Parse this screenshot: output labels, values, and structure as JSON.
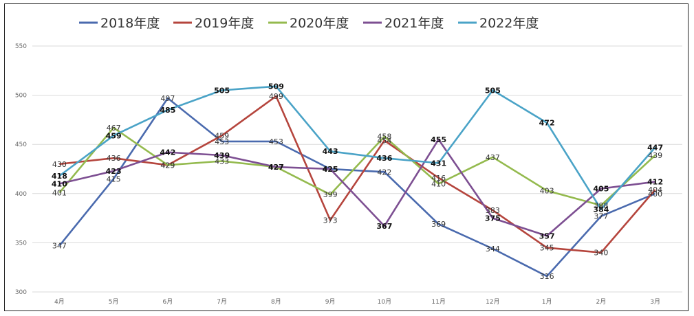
{
  "chart_data": {
    "type": "line",
    "categories": [
      "4月",
      "5月",
      "6月",
      "7月",
      "8月",
      "9月",
      "10月",
      "11月",
      "12月",
      "1月",
      "2月",
      "3月"
    ],
    "ylim": [
      300,
      550
    ],
    "yticks": [
      300,
      350,
      400,
      450,
      500,
      550
    ],
    "grid": true,
    "legend_position": "top",
    "series": [
      {
        "name": "2018年度",
        "color": "#4a6aae",
        "values": [
          347,
          415,
          497,
          453,
          453,
          425,
          422,
          369,
          344,
          316,
          377,
          400
        ]
      },
      {
        "name": "2019年度",
        "color": "#b5453d",
        "values": [
          430,
          436,
          429,
          459,
          499,
          373,
          454,
          416,
          383,
          345,
          340,
          404
        ]
      },
      {
        "name": "2020年度",
        "color": "#94ba4e",
        "values": [
          401,
          467,
          429,
          433,
          427,
          399,
          458,
          410,
          437,
          403,
          388,
          439
        ]
      },
      {
        "name": "2021年度",
        "color": "#7d4f92",
        "values": [
          410,
          423,
          442,
          439,
          427,
          425,
          367,
          455,
          375,
          357,
          405,
          412
        ]
      },
      {
        "name": "2022年度",
        "color": "#4aa3c7",
        "values": [
          418,
          459,
          485,
          505,
          509,
          443,
          436,
          431,
          505,
          472,
          384,
          447
        ]
      }
    ]
  }
}
